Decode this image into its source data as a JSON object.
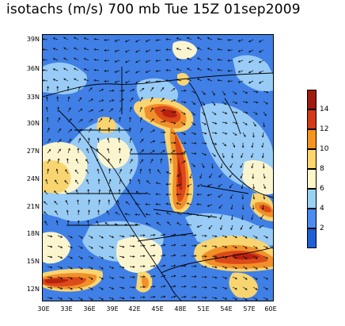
{
  "title": "isotachs (m/s) 700 mb Tue 15Z 01sep2009",
  "lat_ticks": [
    "39N",
    "36N",
    "33N",
    "30N",
    "27N",
    "24N",
    "21N",
    "18N",
    "15N",
    "12N"
  ],
  "lon_ticks": [
    "30E",
    "33E",
    "36E",
    "39E",
    "42E",
    "45E",
    "48E",
    "51E",
    "54E",
    "57E",
    "60E"
  ],
  "colorbar": {
    "levels": [
      "2",
      "4",
      "6",
      "8",
      "10",
      "12",
      "14"
    ],
    "colors": [
      "#1e5fd6",
      "#4a8cf0",
      "#9ad2f6",
      "#fff7c8",
      "#ffd66b",
      "#f5951e",
      "#d43a16",
      "#a01a0e"
    ]
  },
  "map_colors": {
    "speed_0_2": "#2a63d8",
    "speed_2_4": "#4788ec",
    "speed_4_6": "#9dd0f5",
    "speed_6_8": "#fbf5cf",
    "speed_8_10": "#f9d571",
    "speed_10_12": "#f0902a",
    "speed_12_14": "#dc4a1a",
    "speed_14_plus": "#b7220d"
  }
}
